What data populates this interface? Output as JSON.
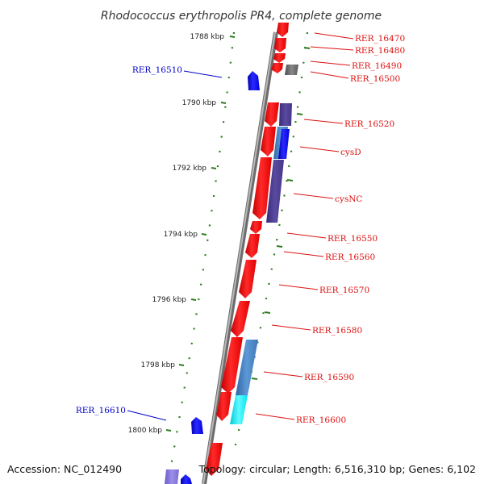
{
  "header": {
    "title": "Rhodococcus erythropolis PR4, complete genome"
  },
  "footer": {
    "accession": "Accession: NC_012490",
    "summary": "Topology: circular; Length: 6,516,310 bp; Genes: 6,102"
  },
  "ruler": {
    "labels": [
      "1788 kbp",
      "1790 kbp",
      "1792 kbp",
      "1794 kbp",
      "1796 kbp",
      "1798 kbp",
      "1800 kbp"
    ],
    "tick_color": "#2e7d1e"
  },
  "legend_colors": {
    "forward_gene": "#e00000",
    "reverse_gene": "#0000dd",
    "cog_slate": "#4a3a8c",
    "cog_steel": "#3d78b8",
    "cog_cyan": "#00e5f0",
    "cog_gray": "#666666",
    "backbone": "#8a8a8a"
  },
  "genes": {
    "forward": [
      "RER_16470",
      "RER_16480",
      "RER_16490",
      "RER_16500",
      "RER_16520",
      "cysD",
      "cysNC",
      "RER_16550",
      "RER_16560",
      "RER_16570",
      "RER_16580",
      "RER_16590",
      "RER_16600"
    ],
    "reverse": [
      "RER_16510",
      "RER_16610"
    ]
  }
}
